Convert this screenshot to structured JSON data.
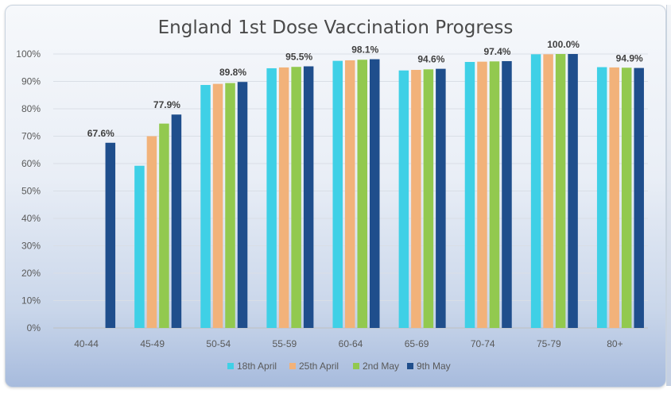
{
  "chart_data": {
    "type": "bar",
    "title": "England 1st Dose Vaccination Progress",
    "xlabel": "",
    "ylabel": "",
    "ylim": [
      0,
      100
    ],
    "yticks": [
      "0%",
      "10%",
      "20%",
      "30%",
      "40%",
      "50%",
      "60%",
      "70%",
      "80%",
      "90%",
      "100%"
    ],
    "grid": true,
    "legend_position": "bottom",
    "categories": [
      "40-44",
      "45-49",
      "50-54",
      "55-59",
      "60-64",
      "65-69",
      "70-74",
      "75-79",
      "80+"
    ],
    "series": [
      {
        "name": "18th April",
        "color": "#3fd0e6",
        "values": [
          null,
          59.2,
          88.7,
          94.8,
          97.5,
          94.0,
          97.1,
          99.9,
          95.2
        ]
      },
      {
        "name": "25th April",
        "color": "#f2b27a",
        "values": [
          null,
          70.0,
          89.1,
          95.1,
          97.7,
          94.2,
          97.2,
          99.9,
          95.1
        ]
      },
      {
        "name": "2nd May",
        "color": "#92c94f",
        "values": [
          null,
          74.6,
          89.4,
          95.3,
          97.9,
          94.4,
          97.3,
          100.0,
          95.0
        ]
      },
      {
        "name": "9th May",
        "color": "#1f4e8c",
        "values": [
          67.6,
          77.9,
          89.8,
          95.5,
          98.1,
          94.6,
          97.4,
          100.0,
          94.9
        ]
      }
    ],
    "data_labels": [
      "67.6%",
      "77.9%",
      "89.8%",
      "95.5%",
      "98.1%",
      "94.6%",
      "97.4%",
      "100.0%",
      "94.9%"
    ]
  }
}
